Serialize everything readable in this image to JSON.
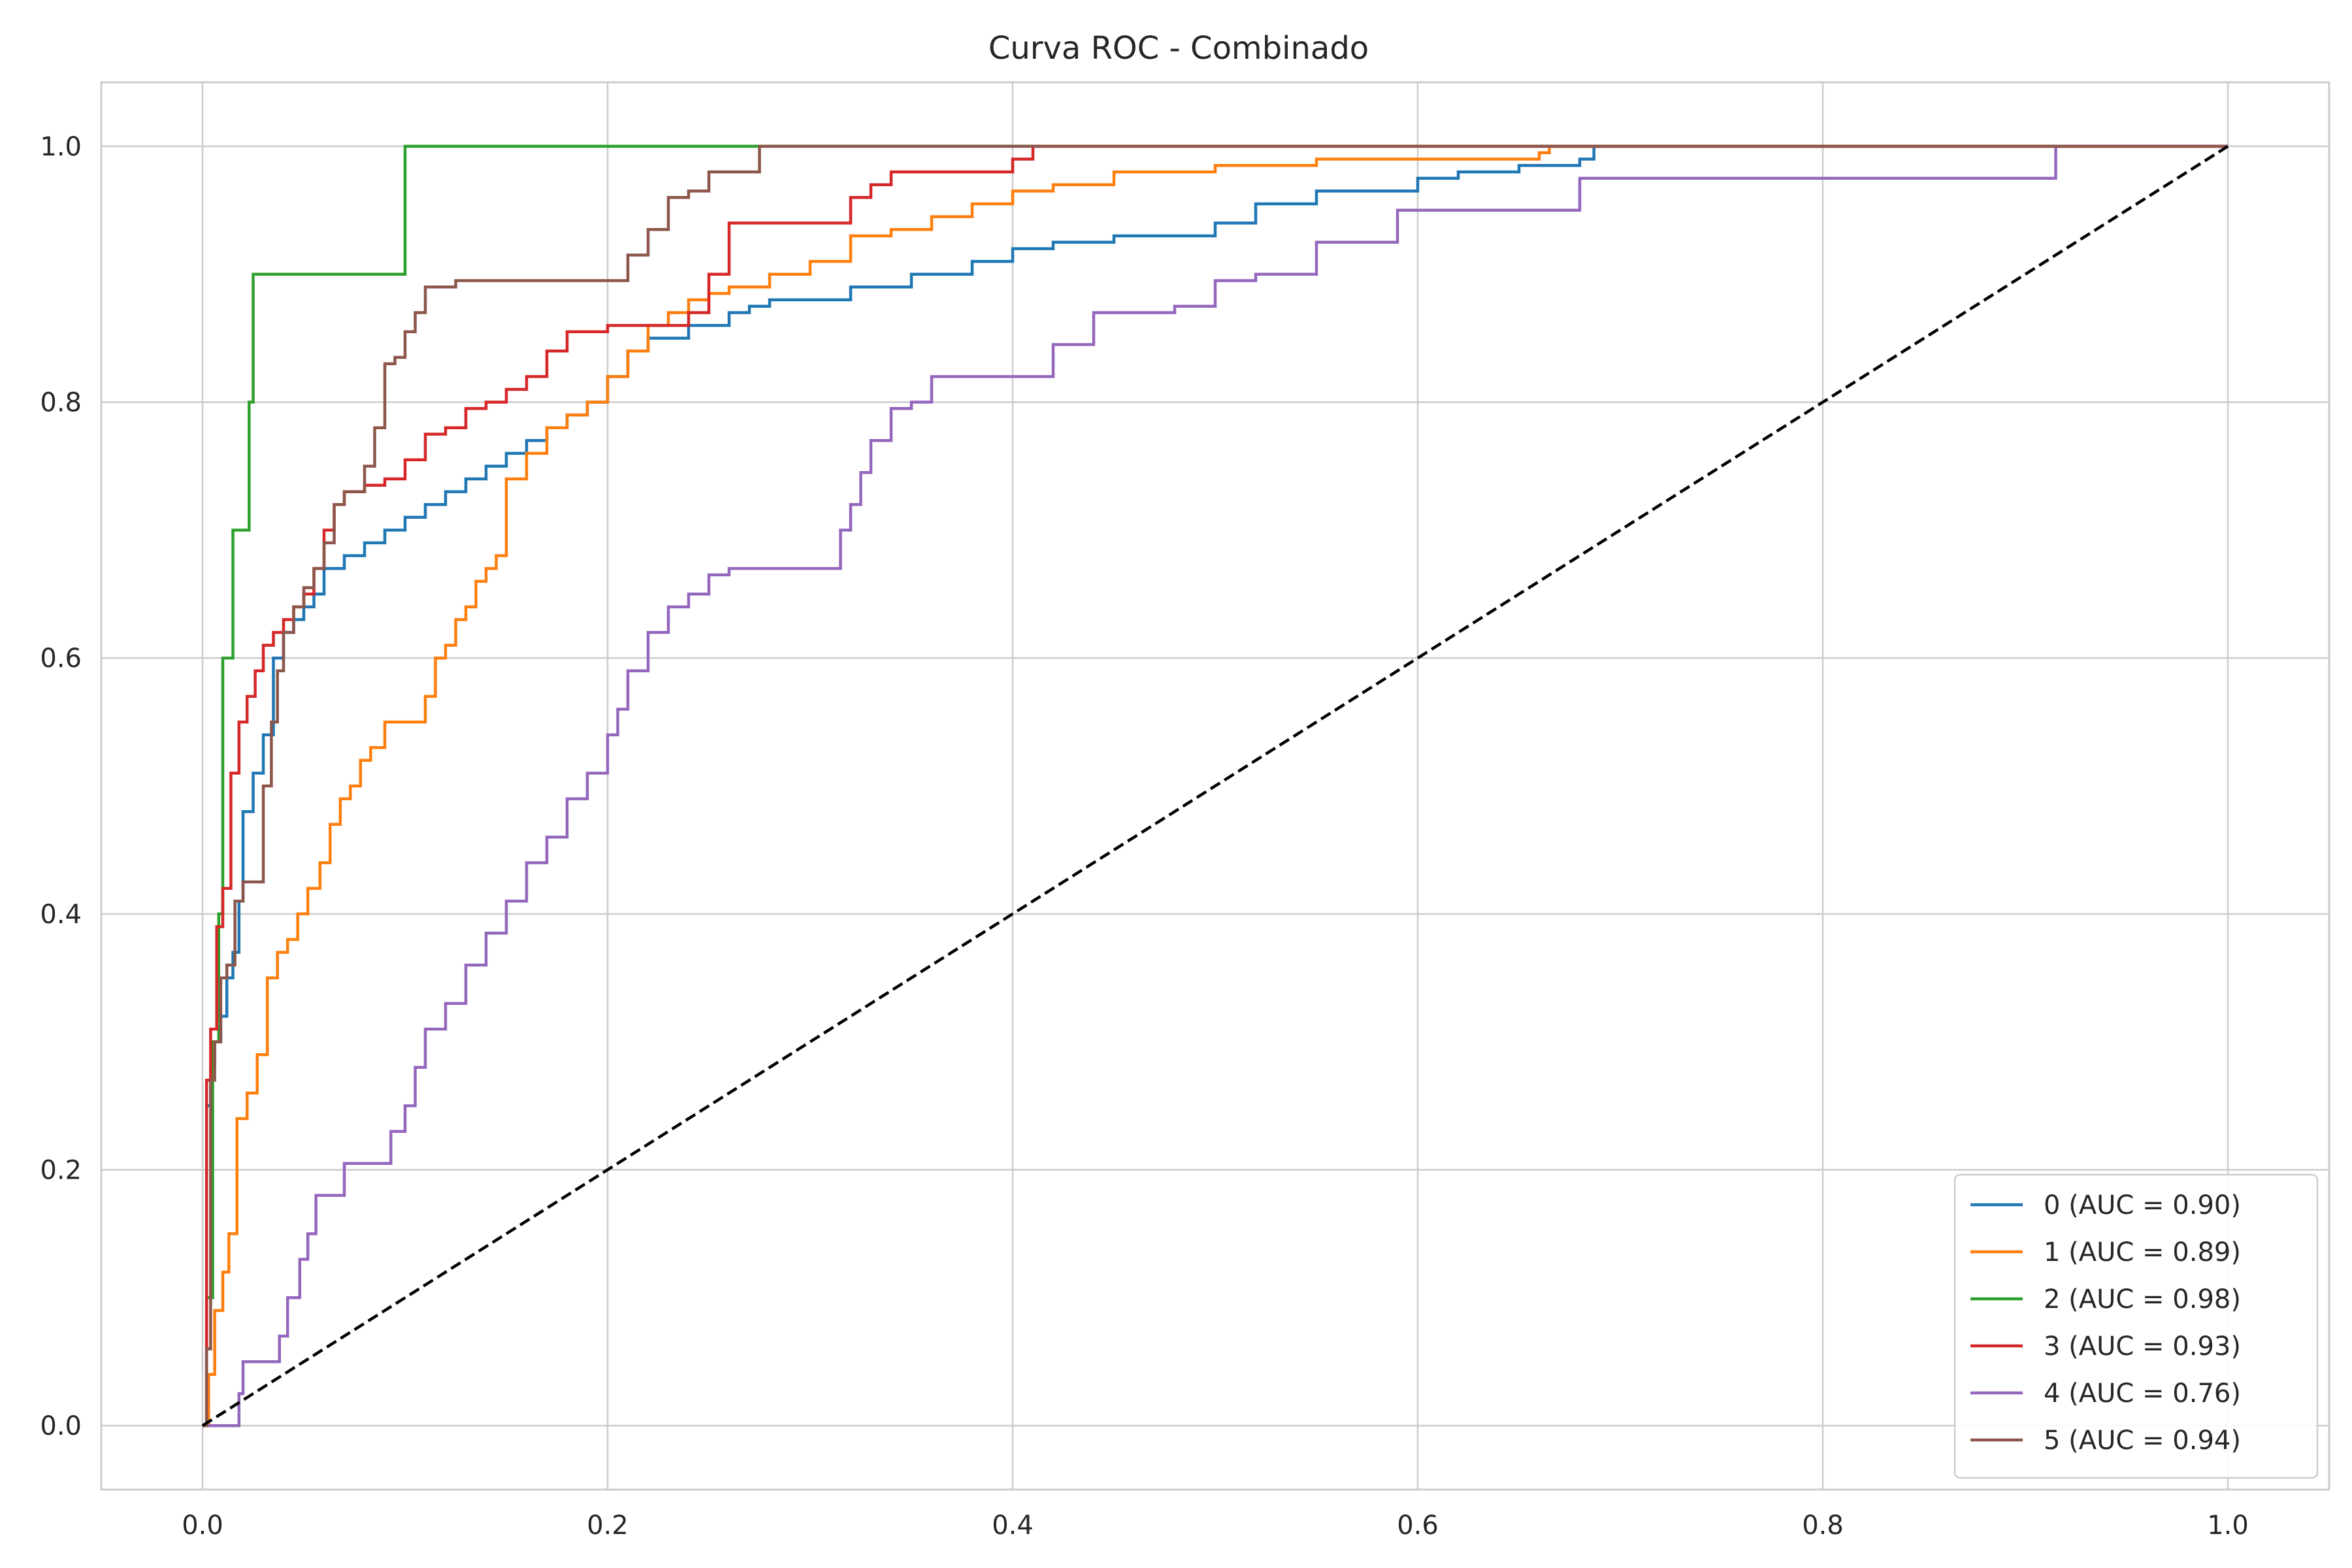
{
  "chart_data": {
    "type": "line",
    "title": "Curva ROC - Combinado",
    "xlabel": "",
    "ylabel": "",
    "xlim": [
      -0.05,
      1.05
    ],
    "ylim": [
      -0.05,
      1.05
    ],
    "xticks": [
      "0.0",
      "0.2",
      "0.4",
      "0.6",
      "0.8",
      "1.0"
    ],
    "yticks": [
      "0.0",
      "0.2",
      "0.4",
      "0.6",
      "0.8",
      "1.0"
    ],
    "grid": true,
    "legend_position": "lower-right",
    "series": [
      {
        "name": "0 (AUC = 0.90)",
        "color": "#1f77b4",
        "x": [
          0.0,
          0.002,
          0.004,
          0.006,
          0.009,
          0.012,
          0.015,
          0.018,
          0.02,
          0.025,
          0.03,
          0.035,
          0.04,
          0.045,
          0.05,
          0.055,
          0.06,
          0.07,
          0.08,
          0.09,
          0.1,
          0.11,
          0.12,
          0.13,
          0.14,
          0.15,
          0.16,
          0.17,
          0.18,
          0.19,
          0.2,
          0.21,
          0.22,
          0.24,
          0.26,
          0.27,
          0.28,
          0.3,
          0.32,
          0.35,
          0.38,
          0.4,
          0.42,
          0.45,
          0.5,
          0.52,
          0.55,
          0.6,
          0.62,
          0.65,
          0.68,
          0.687,
          1.0
        ],
        "y": [
          0.0,
          0.25,
          0.28,
          0.3,
          0.32,
          0.35,
          0.37,
          0.41,
          0.48,
          0.51,
          0.54,
          0.6,
          0.62,
          0.63,
          0.64,
          0.65,
          0.67,
          0.68,
          0.69,
          0.7,
          0.71,
          0.72,
          0.73,
          0.74,
          0.75,
          0.76,
          0.77,
          0.78,
          0.79,
          0.8,
          0.82,
          0.84,
          0.85,
          0.86,
          0.87,
          0.875,
          0.88,
          0.88,
          0.89,
          0.9,
          0.91,
          0.92,
          0.925,
          0.93,
          0.94,
          0.955,
          0.965,
          0.975,
          0.98,
          0.985,
          0.99,
          1.0,
          1.0
        ]
      },
      {
        "name": "1 (AUC = 0.89)",
        "color": "#ff7f0e",
        "x": [
          0.0,
          0.003,
          0.006,
          0.01,
          0.013,
          0.017,
          0.022,
          0.027,
          0.032,
          0.037,
          0.042,
          0.047,
          0.052,
          0.058,
          0.063,
          0.068,
          0.073,
          0.078,
          0.083,
          0.09,
          0.1,
          0.11,
          0.115,
          0.12,
          0.125,
          0.13,
          0.135,
          0.14,
          0.145,
          0.15,
          0.16,
          0.17,
          0.18,
          0.19,
          0.2,
          0.21,
          0.22,
          0.23,
          0.24,
          0.25,
          0.26,
          0.28,
          0.3,
          0.32,
          0.34,
          0.36,
          0.38,
          0.4,
          0.42,
          0.45,
          0.5,
          0.55,
          0.6,
          0.65,
          0.66,
          0.665,
          1.0
        ],
        "y": [
          0.0,
          0.04,
          0.09,
          0.12,
          0.15,
          0.24,
          0.26,
          0.29,
          0.35,
          0.37,
          0.38,
          0.4,
          0.42,
          0.44,
          0.47,
          0.49,
          0.5,
          0.52,
          0.53,
          0.55,
          0.55,
          0.57,
          0.6,
          0.61,
          0.63,
          0.64,
          0.66,
          0.67,
          0.68,
          0.74,
          0.76,
          0.78,
          0.79,
          0.8,
          0.82,
          0.84,
          0.86,
          0.87,
          0.88,
          0.885,
          0.89,
          0.9,
          0.91,
          0.93,
          0.935,
          0.945,
          0.955,
          0.965,
          0.97,
          0.98,
          0.985,
          0.99,
          0.99,
          0.99,
          0.995,
          1.0,
          1.0
        ]
      },
      {
        "name": "2 (AUC = 0.98)",
        "color": "#2ca02c",
        "x": [
          0.0,
          0.002,
          0.005,
          0.008,
          0.01,
          0.015,
          0.02,
          0.023,
          0.025,
          0.06,
          0.088,
          0.1,
          0.2,
          0.27,
          1.0
        ],
        "y": [
          0.0,
          0.1,
          0.3,
          0.4,
          0.6,
          0.7,
          0.7,
          0.8,
          0.9,
          0.9,
          0.9,
          1.0,
          1.0,
          1.0,
          1.0
        ]
      },
      {
        "name": "3 (AUC = 0.93)",
        "color": "#d62728",
        "x": [
          0.0,
          0.002,
          0.004,
          0.007,
          0.01,
          0.014,
          0.018,
          0.022,
          0.026,
          0.03,
          0.035,
          0.04,
          0.045,
          0.05,
          0.055,
          0.06,
          0.065,
          0.07,
          0.08,
          0.09,
          0.1,
          0.11,
          0.12,
          0.13,
          0.14,
          0.15,
          0.16,
          0.17,
          0.18,
          0.2,
          0.22,
          0.24,
          0.25,
          0.26,
          0.28,
          0.3,
          0.32,
          0.33,
          0.34,
          0.36,
          0.38,
          0.4,
          0.41,
          1.0
        ],
        "y": [
          0.0,
          0.27,
          0.31,
          0.39,
          0.42,
          0.51,
          0.55,
          0.57,
          0.59,
          0.61,
          0.62,
          0.63,
          0.64,
          0.65,
          0.67,
          0.7,
          0.72,
          0.73,
          0.735,
          0.74,
          0.755,
          0.775,
          0.78,
          0.795,
          0.8,
          0.81,
          0.82,
          0.84,
          0.855,
          0.86,
          0.86,
          0.87,
          0.9,
          0.94,
          0.94,
          0.94,
          0.96,
          0.97,
          0.98,
          0.98,
          0.98,
          0.99,
          1.0,
          1.0
        ]
      },
      {
        "name": "4 (AUC = 0.76)",
        "color": "#9467bd",
        "x": [
          0.0,
          0.015,
          0.018,
          0.02,
          0.03,
          0.038,
          0.042,
          0.048,
          0.052,
          0.056,
          0.062,
          0.07,
          0.08,
          0.093,
          0.1,
          0.105,
          0.11,
          0.12,
          0.13,
          0.14,
          0.15,
          0.16,
          0.17,
          0.18,
          0.19,
          0.2,
          0.205,
          0.21,
          0.215,
          0.22,
          0.23,
          0.24,
          0.25,
          0.26,
          0.28,
          0.3,
          0.315,
          0.32,
          0.325,
          0.33,
          0.34,
          0.35,
          0.36,
          0.38,
          0.4,
          0.42,
          0.44,
          0.46,
          0.48,
          0.5,
          0.52,
          0.55,
          0.57,
          0.59,
          0.62,
          0.65,
          0.68,
          0.7,
          0.8,
          0.9,
          0.915,
          1.0
        ],
        "y": [
          0.0,
          0.0,
          0.025,
          0.05,
          0.05,
          0.07,
          0.1,
          0.13,
          0.15,
          0.18,
          0.18,
          0.205,
          0.205,
          0.23,
          0.25,
          0.28,
          0.31,
          0.33,
          0.36,
          0.385,
          0.41,
          0.44,
          0.46,
          0.49,
          0.51,
          0.54,
          0.56,
          0.59,
          0.59,
          0.62,
          0.64,
          0.65,
          0.665,
          0.67,
          0.67,
          0.67,
          0.7,
          0.72,
          0.745,
          0.77,
          0.795,
          0.8,
          0.82,
          0.82,
          0.82,
          0.845,
          0.87,
          0.87,
          0.875,
          0.895,
          0.9,
          0.925,
          0.925,
          0.95,
          0.95,
          0.95,
          0.975,
          0.975,
          0.975,
          0.975,
          1.0,
          1.0
        ]
      },
      {
        "name": "5 (AUC = 0.94)",
        "color": "#8c564b",
        "x": [
          0.0,
          0.002,
          0.004,
          0.006,
          0.009,
          0.012,
          0.016,
          0.02,
          0.025,
          0.03,
          0.034,
          0.037,
          0.04,
          0.045,
          0.05,
          0.055,
          0.06,
          0.065,
          0.07,
          0.08,
          0.085,
          0.09,
          0.095,
          0.1,
          0.105,
          0.11,
          0.125,
          0.15,
          0.2,
          0.21,
          0.22,
          0.23,
          0.24,
          0.25,
          0.26,
          0.27,
          0.275,
          1.0
        ],
        "y": [
          0.0,
          0.06,
          0.27,
          0.3,
          0.35,
          0.36,
          0.41,
          0.425,
          0.425,
          0.5,
          0.55,
          0.59,
          0.62,
          0.64,
          0.655,
          0.67,
          0.69,
          0.72,
          0.73,
          0.75,
          0.78,
          0.83,
          0.835,
          0.855,
          0.87,
          0.89,
          0.895,
          0.895,
          0.895,
          0.915,
          0.935,
          0.96,
          0.965,
          0.98,
          0.98,
          0.98,
          1.0,
          1.0
        ]
      }
    ],
    "reference_line": {
      "x": [
        0.0,
        1.0
      ],
      "y": [
        0.0,
        1.0
      ],
      "color": "#000000",
      "dashed": true
    }
  }
}
